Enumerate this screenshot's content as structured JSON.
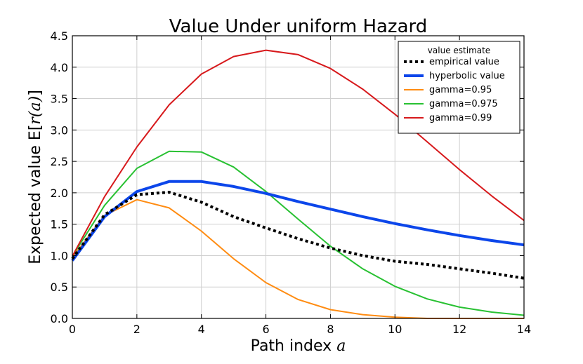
{
  "chart_data": {
    "type": "line",
    "title": "Value Under uniform Hazard",
    "xlabel": "Path index ",
    "xlabel_math": "a",
    "ylabel": "Expected value E[",
    "ylabel_math": "r(a)",
    "ylabel_end": "]",
    "xlim": [
      0,
      14
    ],
    "ylim": [
      0.0,
      4.5
    ],
    "xticks": [
      0,
      2,
      4,
      6,
      8,
      10,
      12,
      14
    ],
    "xtick_labels": [
      "0",
      "2",
      "4",
      "6",
      "8",
      "10",
      "12",
      "14"
    ],
    "yticks": [
      0.0,
      0.5,
      1.0,
      1.5,
      2.0,
      2.5,
      3.0,
      3.5,
      4.0,
      4.5
    ],
    "ytick_labels": [
      "0.0",
      "0.5",
      "1.0",
      "1.5",
      "2.0",
      "2.5",
      "3.0",
      "3.5",
      "4.0",
      "4.5"
    ],
    "grid": true,
    "legend_title": "value estimate",
    "legend_position": "top-right",
    "x": [
      0,
      1,
      2,
      3,
      4,
      5,
      6,
      7,
      8,
      9,
      10,
      11,
      12,
      13,
      14
    ],
    "series": [
      {
        "name": "empirical value",
        "color": "#000000",
        "style": "dotted",
        "width": 4,
        "values": [
          0.95,
          1.65,
          1.97,
          2.01,
          1.85,
          1.62,
          1.44,
          1.27,
          1.12,
          1.0,
          0.91,
          0.86,
          0.79,
          0.72,
          0.64
        ]
      },
      {
        "name": "hyperbolic value",
        "color": "#0c46ea",
        "style": "solid",
        "width": 4,
        "values": [
          0.92,
          1.62,
          2.02,
          2.18,
          2.18,
          2.1,
          1.99,
          1.86,
          1.74,
          1.62,
          1.51,
          1.41,
          1.32,
          1.24,
          1.17
        ]
      },
      {
        "name": "gamma=0.95",
        "color": "#ff8c12",
        "style": "solid",
        "width": 2,
        "values": [
          0.97,
          1.64,
          1.89,
          1.76,
          1.39,
          0.95,
          0.57,
          0.3,
          0.14,
          0.06,
          0.02,
          0.0,
          0.0,
          0.0,
          0.0
        ]
      },
      {
        "name": "gamma=0.975",
        "color": "#28c132",
        "style": "solid",
        "width": 2,
        "values": [
          0.99,
          1.8,
          2.39,
          2.66,
          2.65,
          2.41,
          2.02,
          1.58,
          1.15,
          0.79,
          0.51,
          0.31,
          0.18,
          0.1,
          0.05
        ]
      },
      {
        "name": "gamma=0.99",
        "color": "#d7191c",
        "style": "solid",
        "width": 2,
        "values": [
          0.99,
          1.94,
          2.73,
          3.4,
          3.89,
          4.17,
          4.27,
          4.2,
          3.98,
          3.65,
          3.25,
          2.81,
          2.37,
          1.95,
          1.56
        ]
      }
    ]
  }
}
